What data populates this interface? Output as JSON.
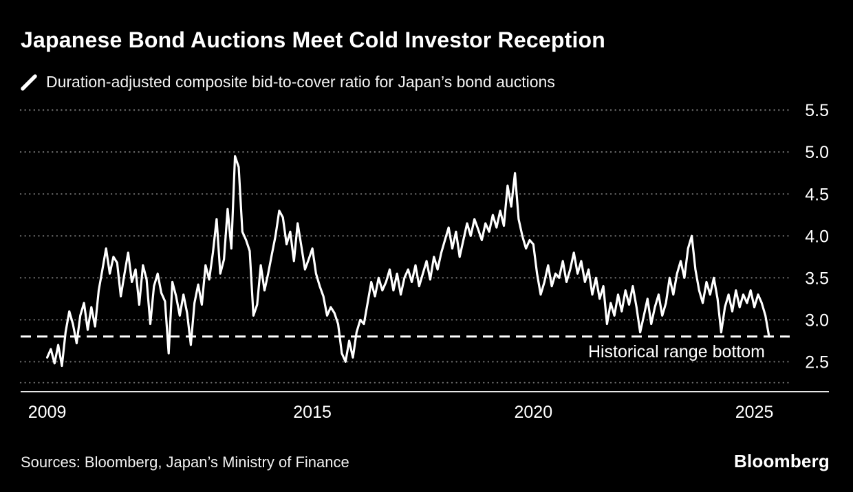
{
  "header": {
    "title": "Japanese Bond Auctions Meet Cold Investor Reception",
    "legend_label": "Duration-adjusted composite bid-to-cover ratio for Japan’s bond auctions"
  },
  "annotations": {
    "reference_label": "Historical range bottom"
  },
  "footer": {
    "sources": "Sources: Bloomberg, Japan’s Ministry of Finance",
    "brand": "Bloomberg"
  },
  "chart_data": {
    "type": "line",
    "title": "Japanese Bond Auctions Meet Cold Investor Reception",
    "legend": "Duration-adjusted composite bid-to-cover ratio for Japan’s bond auctions",
    "xlabel": "",
    "ylabel": "",
    "x_ticks": [
      2009,
      2015,
      2020,
      2025
    ],
    "y_ticks": [
      5.5,
      5.0,
      4.5,
      4.0,
      3.5,
      3.0,
      2.5
    ],
    "extra_gridlines": [
      2.25
    ],
    "xlim": [
      2008.4,
      2025.8
    ],
    "ylim": [
      2.2,
      5.6
    ],
    "grid": "dotted-horizontal",
    "legend_position": "top-left",
    "line_color": "#ffffff",
    "background_color": "#000000",
    "reference_line": {
      "value": 2.8,
      "style": "dashed",
      "label": "Historical range bottom"
    },
    "series": [
      {
        "name": "Duration-adjusted composite bid-to-cover ratio",
        "x_start": 2009.0,
        "x_step": 0.0833333,
        "values": [
          2.55,
          2.65,
          2.48,
          2.7,
          2.45,
          2.85,
          3.1,
          2.95,
          2.72,
          3.05,
          3.2,
          2.88,
          3.15,
          2.92,
          3.35,
          3.6,
          3.85,
          3.55,
          3.75,
          3.68,
          3.28,
          3.55,
          3.8,
          3.45,
          3.6,
          3.18,
          3.65,
          3.48,
          2.95,
          3.4,
          3.55,
          3.32,
          3.22,
          2.6,
          3.45,
          3.28,
          3.05,
          3.3,
          3.08,
          2.7,
          3.2,
          3.42,
          3.18,
          3.65,
          3.48,
          3.8,
          4.2,
          3.55,
          3.72,
          4.32,
          3.85,
          4.95,
          4.82,
          4.05,
          3.95,
          3.82,
          3.05,
          3.18,
          3.65,
          3.35,
          3.55,
          3.78,
          4.0,
          4.3,
          4.22,
          3.9,
          4.05,
          3.7,
          4.15,
          3.88,
          3.6,
          3.72,
          3.85,
          3.55,
          3.4,
          3.28,
          3.05,
          3.15,
          3.08,
          2.95,
          2.6,
          2.5,
          2.75,
          2.55,
          2.85,
          3.0,
          2.95,
          3.2,
          3.45,
          3.28,
          3.5,
          3.35,
          3.45,
          3.6,
          3.35,
          3.55,
          3.3,
          3.5,
          3.6,
          3.45,
          3.65,
          3.4,
          3.55,
          3.7,
          3.48,
          3.75,
          3.6,
          3.8,
          3.95,
          4.1,
          3.85,
          4.05,
          3.75,
          3.95,
          4.15,
          4.0,
          4.2,
          4.08,
          3.95,
          4.15,
          4.05,
          4.25,
          4.1,
          4.3,
          4.12,
          4.6,
          4.35,
          4.75,
          4.2,
          4.0,
          3.85,
          3.95,
          3.9,
          3.55,
          3.3,
          3.45,
          3.65,
          3.4,
          3.55,
          3.5,
          3.7,
          3.45,
          3.6,
          3.8,
          3.55,
          3.7,
          3.45,
          3.6,
          3.3,
          3.5,
          3.25,
          3.4,
          2.95,
          3.2,
          3.05,
          3.3,
          3.1,
          3.35,
          3.18,
          3.4,
          3.15,
          2.85,
          3.05,
          3.25,
          2.95,
          3.15,
          3.3,
          3.05,
          3.2,
          3.5,
          3.3,
          3.55,
          3.7,
          3.5,
          3.85,
          4.0,
          3.6,
          3.35,
          3.2,
          3.45,
          3.3,
          3.5,
          3.25,
          2.85,
          3.15,
          3.3,
          3.1,
          3.35,
          3.15,
          3.3,
          3.2,
          3.35,
          3.15,
          3.3,
          3.2,
          3.05,
          2.8
        ]
      }
    ],
    "sources": "Sources: Bloomberg, Japan’s Ministry of Finance",
    "brand": "Bloomberg"
  }
}
